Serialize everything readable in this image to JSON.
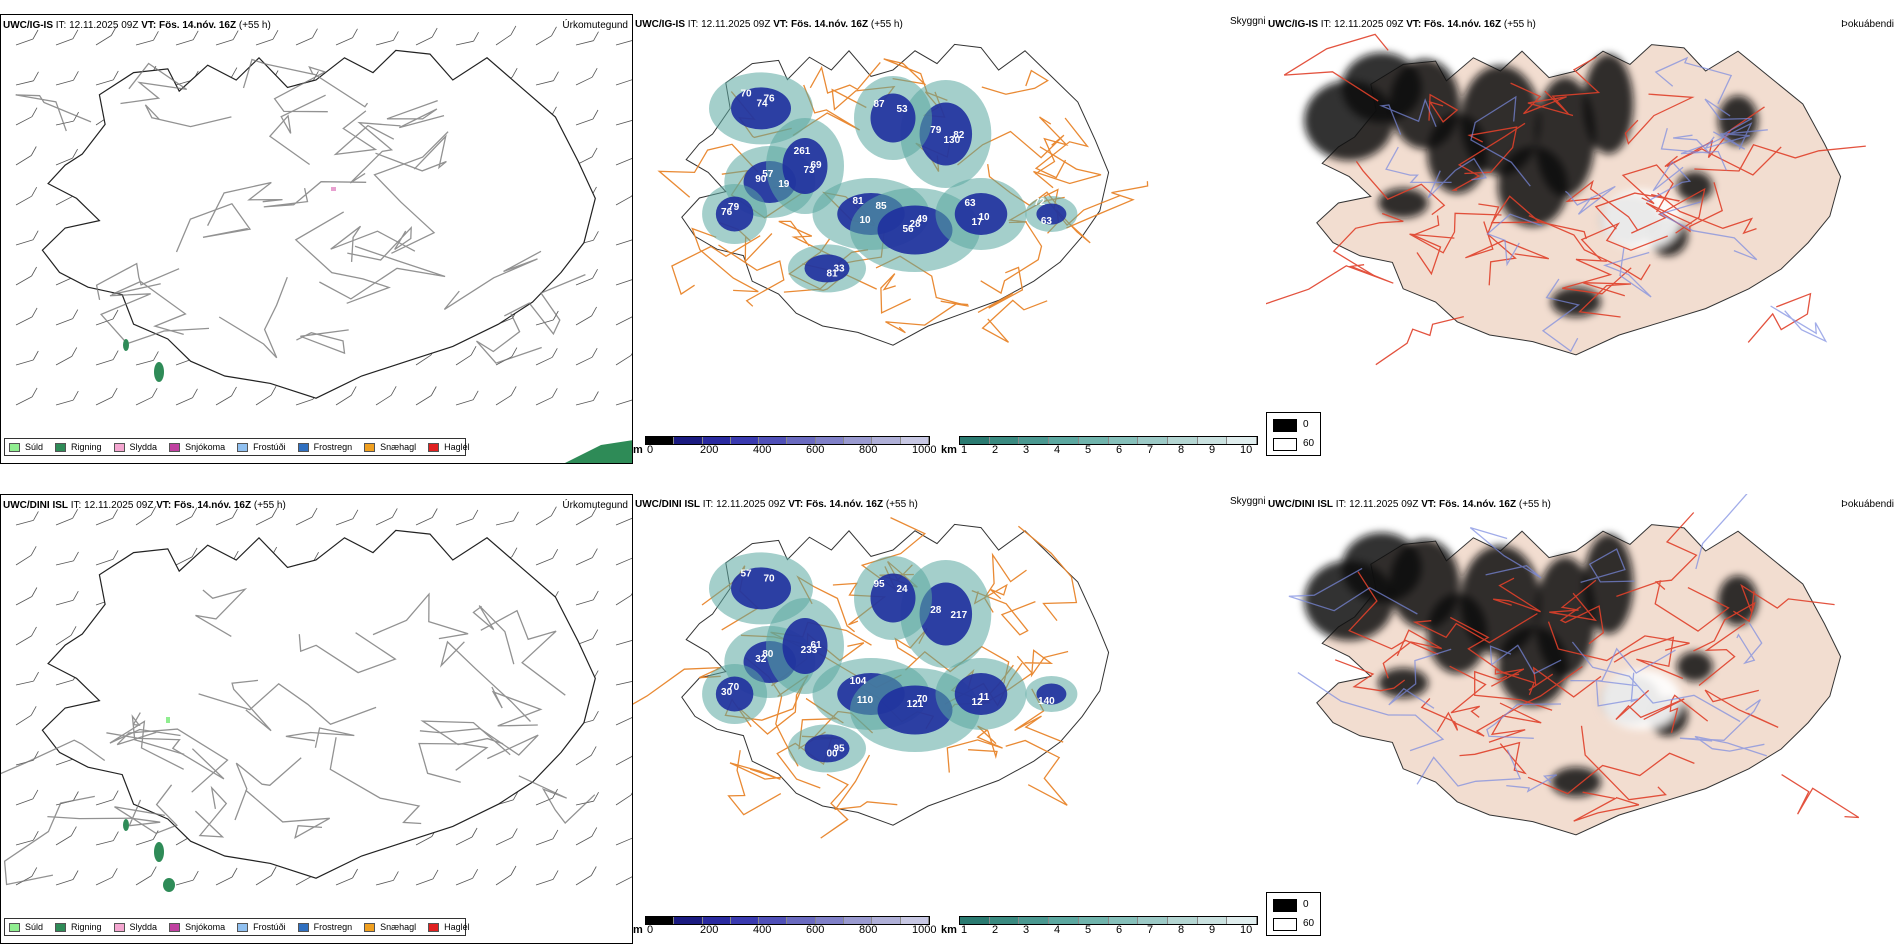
{
  "panels": [
    {
      "model": "UWC/IG-IS",
      "it_label": "IT:",
      "it": "12.11.2025 09Z",
      "vt_label": "VT:",
      "vt": "Fös. 14.nóv. 16Z",
      "lead": "(+55 h)"
    },
    {
      "model": "UWC/DINI ISL",
      "it_label": "IT:",
      "it": "12.11.2025 09Z",
      "vt_label": "VT:",
      "vt": "Fös. 14.nóv. 16Z",
      "lead": "(+55 h)"
    }
  ],
  "precip_type_title": "Úrkomutegund",
  "visibility_title": "Skyggni",
  "fog_title": "Þokuábendi",
  "precip_legend": [
    {
      "label": "Súld",
      "color": "#90ee90"
    },
    {
      "label": "Rigning",
      "color": "#2e8b57"
    },
    {
      "label": "Slydda",
      "color": "#f4a6d0"
    },
    {
      "label": "Snjókoma",
      "color": "#c040a0"
    },
    {
      "label": "Frostúði",
      "color": "#90c0f0"
    },
    {
      "label": "Frostregn",
      "color": "#3070c0"
    },
    {
      "label": "Snæhagl",
      "color": "#f0a020"
    },
    {
      "label": "Haglél",
      "color": "#e02020"
    }
  ],
  "ceiling_bar": {
    "unit": "m",
    "ticks": [
      "0",
      "200",
      "400",
      "600",
      "800",
      "1000"
    ],
    "colors": [
      "#000000",
      "#1a1a80",
      "#2a2aa0",
      "#3a3ab0",
      "#5050b8",
      "#6a6ac0",
      "#8080c8",
      "#9a9ad0",
      "#b0b0d8",
      "#c8c8e4"
    ]
  },
  "visibility_bar": {
    "unit": "km",
    "ticks": [
      "1",
      "2",
      "3",
      "4",
      "5",
      "6",
      "7",
      "8",
      "9",
      "10"
    ],
    "colors": [
      "#2a7a70",
      "#3a8a80",
      "#4a9890",
      "#5ca8a0",
      "#70b4ac",
      "#86c0ba",
      "#9ccac6",
      "#b4d6d2",
      "#cae2e0",
      "#e0eeee"
    ]
  },
  "cloud_legend": {
    "items": [
      "0",
      "60"
    ],
    "colors": [
      "#000000",
      "#ffffff"
    ]
  },
  "visibility_labels_top": [
    "70",
    "57",
    "69",
    "10",
    "49",
    "79",
    "10",
    "87",
    "79",
    "33",
    "63",
    "76",
    "90",
    "73",
    "81",
    "28",
    "82",
    "17",
    "53",
    "76",
    "81",
    "72",
    "74",
    "19",
    "261",
    "85",
    "56",
    "130",
    "63"
  ],
  "visibility_labels_bottom": [
    "57",
    "80",
    "61",
    "110",
    "70",
    "28",
    "11",
    "95",
    "70",
    "95",
    "140",
    "70",
    "32",
    "233",
    "104",
    "121",
    "217",
    "12",
    "24",
    "30",
    "00"
  ],
  "colors": {
    "coast": "#222222",
    "roads_orange": "#e8842a",
    "roads_red": "#e0402a",
    "rivers": "#7a8ae0",
    "land_tint": "#f2ddd0",
    "rain": "#2e8b57",
    "vis_blue": "#1f2f9e",
    "vis_teal": "#5aa8a0"
  }
}
